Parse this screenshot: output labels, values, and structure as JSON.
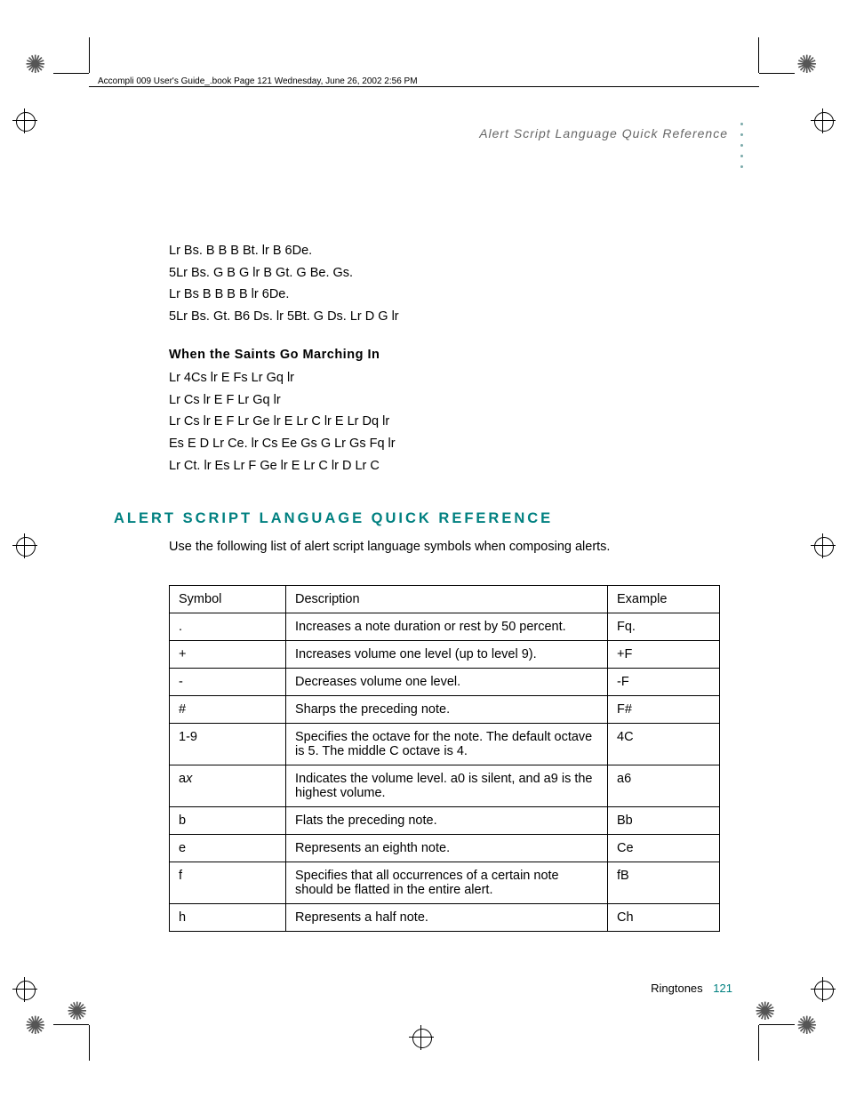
{
  "running_head": "Accompli 009 User's Guide_.book  Page 121  Wednesday, June 26, 2002  2:56 PM",
  "page_header": "Alert Script Language Quick Reference",
  "content": {
    "lines1": [
      "Lr Bs. B B B Bt. lr B 6De.",
      "5Lr Bs. G B G lr B Gt. G Be. Gs.",
      "Lr Bs B B B B lr 6De.",
      "5Lr Bs. Gt. B6 Ds. lr 5Bt. G Ds. Lr D G lr"
    ],
    "song_title": "When the Saints Go Marching In",
    "lines2": [
      "Lr 4Cs lr E Fs Lr Gq lr",
      "Lr Cs lr E F Lr Gq lr",
      "Lr Cs lr E F Lr Ge lr E Lr C lr E Lr Dq lr",
      "Es E D Lr Ce. lr Cs Ee Gs G Lr Gs Fq lr",
      "Lr Ct. lr Es Lr F Ge lr E Lr C lr D Lr C"
    ]
  },
  "section_heading": "ALERT SCRIPT LANGUAGE QUICK REFERENCE",
  "intro": "Use the following list of alert script language symbols when composing alerts.",
  "table": {
    "headers": [
      "Symbol",
      "Description",
      "Example"
    ],
    "rows": [
      [
        ".",
        "Increases a note duration or rest by 50 percent.",
        "Fq."
      ],
      [
        "+",
        "Increases volume one level (up to level 9).",
        "+F"
      ],
      [
        "-",
        "Decreases volume one level.",
        "-F"
      ],
      [
        "#",
        "Sharps the preceding note.",
        "F#"
      ],
      [
        "1-9",
        "Specifies the octave for the note. The default octave is 5. The middle C octave is 4.",
        "4C"
      ],
      [
        "a",
        "Indicates the volume level. a0 is silent, and a9 is the highest volume.",
        "a6"
      ],
      [
        "b",
        "Flats the preceding note.",
        "Bb"
      ],
      [
        "e",
        "Represents an eighth note.",
        "Ce"
      ],
      [
        "f",
        "Specifies that all occurrences of a certain note should be flatted in the entire alert.",
        "fB"
      ],
      [
        "h",
        "Represents a half note.",
        "Ch"
      ]
    ],
    "ax_row_index": 5
  },
  "footer": {
    "label": "Ringtones",
    "page": "121"
  },
  "colors": {
    "teal": "#008080",
    "dot": "#7aa9a9",
    "header_gray": "#666666"
  }
}
